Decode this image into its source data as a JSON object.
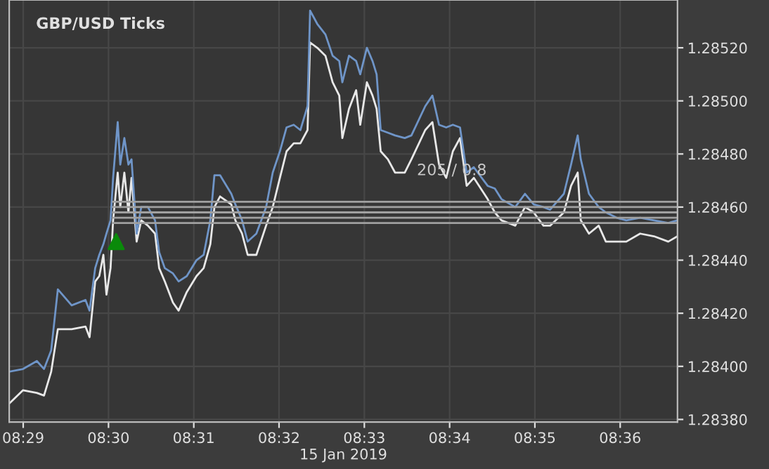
{
  "chart_data": {
    "type": "line",
    "title": "GBP/USD Ticks",
    "xlabel": "15 Jan 2019",
    "annotations": [
      "205 / 0.8"
    ],
    "x": [
      8.4806,
      8.4833,
      8.486,
      8.4874,
      8.4888,
      8.4901,
      8.4928,
      8.4955,
      8.4963,
      8.4974,
      8.4982,
      8.499,
      8.4996,
      8.5004,
      8.5009,
      8.5018,
      8.5023,
      8.5031,
      8.5039,
      8.5045,
      8.5055,
      8.5064,
      8.5077,
      8.5091,
      8.5099,
      8.511,
      8.5126,
      8.5137,
      8.5153,
      8.5172,
      8.5186,
      8.5199,
      8.5207,
      8.5218,
      8.524,
      8.5248,
      8.5261,
      8.5272,
      8.5289,
      8.5308,
      8.5321,
      8.5335,
      8.5348,
      8.5362,
      8.5375,
      8.5389,
      8.5394,
      8.5408,
      8.5424,
      8.5438,
      8.5451,
      8.5457,
      8.547,
      8.5484,
      8.5492,
      8.5505,
      8.5516,
      8.5524,
      8.5532,
      8.5546,
      8.556,
      8.5579,
      8.5592,
      8.5619,
      8.5633,
      8.5646,
      8.566,
      8.5673,
      8.5687,
      8.57,
      8.5714,
      8.5741,
      8.5755,
      8.5768,
      8.5795,
      8.5814,
      8.5831,
      8.585,
      8.5863,
      8.589,
      8.5904,
      8.5917,
      8.5923,
      8.5939,
      8.5958,
      8.5972,
      8.5993,
      8.6012,
      8.6039,
      8.6066,
      8.6094,
      8.6112
    ],
    "series": [
      {
        "color": "#e8e8e8",
        "values": [
          1.28386,
          1.28391,
          1.2839,
          1.28389,
          1.28398,
          1.28414,
          1.28414,
          1.28415,
          1.28411,
          1.28432,
          1.28434,
          1.28442,
          1.28427,
          1.28437,
          1.28455,
          1.28473,
          1.2846,
          1.28473,
          1.28458,
          1.28471,
          1.28447,
          1.28455,
          1.28453,
          1.2845,
          1.28437,
          1.28432,
          1.28424,
          1.28421,
          1.28428,
          1.28434,
          1.28437,
          1.28446,
          1.2846,
          1.28464,
          1.28461,
          1.28455,
          1.2845,
          1.28442,
          1.28442,
          1.28453,
          1.2846,
          1.28471,
          1.28481,
          1.28484,
          1.28484,
          1.28489,
          1.28522,
          1.2852,
          1.28517,
          1.28507,
          1.28502,
          1.28486,
          1.28497,
          1.28504,
          1.28491,
          1.28507,
          1.28502,
          1.28497,
          1.28481,
          1.28478,
          1.28473,
          1.28473,
          1.28478,
          1.28489,
          1.28492,
          1.28476,
          1.28471,
          1.28481,
          1.28486,
          1.28468,
          1.28471,
          1.28463,
          1.28458,
          1.28455,
          1.28453,
          1.2846,
          1.28458,
          1.28453,
          1.28453,
          1.28458,
          1.28468,
          1.28473,
          1.28455,
          1.2845,
          1.28453,
          1.28447,
          1.28447,
          1.28447,
          1.2845,
          1.28449,
          1.28447,
          1.28449
        ]
      },
      {
        "color": "#6f95c8",
        "values": [
          1.28398,
          1.28399,
          1.28402,
          1.28399,
          1.28406,
          1.28429,
          1.28423,
          1.28425,
          1.28421,
          1.28437,
          1.28442,
          1.28446,
          1.2845,
          1.28455,
          1.28471,
          1.28492,
          1.28476,
          1.28486,
          1.28476,
          1.28478,
          1.2845,
          1.2846,
          1.2846,
          1.28455,
          1.28443,
          1.28437,
          1.28435,
          1.28432,
          1.28434,
          1.2844,
          1.28442,
          1.28455,
          1.28472,
          1.28472,
          1.28465,
          1.28461,
          1.28455,
          1.28447,
          1.2845,
          1.2846,
          1.28473,
          1.28481,
          1.2849,
          1.28491,
          1.28489,
          1.28498,
          1.28534,
          1.28529,
          1.28525,
          1.28517,
          1.28515,
          1.28507,
          1.28517,
          1.28515,
          1.2851,
          1.2852,
          1.28515,
          1.2851,
          1.28489,
          1.28488,
          1.28487,
          1.28486,
          1.28487,
          1.28498,
          1.28502,
          1.28491,
          1.2849,
          1.28491,
          1.2849,
          1.28473,
          1.28475,
          1.28468,
          1.28467,
          1.28463,
          1.2846,
          1.28465,
          1.28461,
          1.2846,
          1.28459,
          1.28465,
          1.28476,
          1.28487,
          1.28478,
          1.28465,
          1.2846,
          1.28458,
          1.28456,
          1.28455,
          1.28456,
          1.28455,
          1.28454,
          1.28455
        ]
      },
      {
        "color": "#a0a0a0",
        "x": [
          8.5009,
          8.6112
        ],
        "values": [
          1.28462,
          1.28462
        ]
      },
      {
        "color": "#a0a0a0",
        "x": [
          8.5009,
          8.6112
        ],
        "values": [
          1.2846,
          1.2846
        ]
      },
      {
        "color": "#a0a0a0",
        "x": [
          8.5009,
          8.6112
        ],
        "values": [
          1.28458,
          1.28458
        ]
      },
      {
        "color": "#a0a0a0",
        "x": [
          8.5009,
          8.6112
        ],
        "values": [
          1.28456,
          1.28456
        ]
      },
      {
        "color": "#a0a0a0",
        "x": [
          8.5009,
          8.6112
        ],
        "values": [
          1.28454,
          1.28454
        ]
      },
      {
        "type": "scatter",
        "marker": "triangle",
        "color": "#0a8a0a",
        "x": [
          8.5015
        ],
        "values": [
          1.28447
        ]
      }
    ],
    "xlim": [
      8.4806,
      8.6112
    ],
    "xticks": [
      {
        "value": 8.48333,
        "label": "08:29"
      },
      {
        "value": 8.5,
        "label": "08:30"
      },
      {
        "value": 8.51667,
        "label": "08:31"
      },
      {
        "value": 8.53333,
        "label": "08:32"
      },
      {
        "value": 8.55,
        "label": "08:33"
      },
      {
        "value": 8.56667,
        "label": "08:34"
      },
      {
        "value": 8.58333,
        "label": "08:35"
      },
      {
        "value": 8.6,
        "label": "08:36"
      }
    ],
    "ylim": [
      1.28379,
      1.28538
    ],
    "yticks": [
      {
        "value": 1.2838,
        "label": "1.28380"
      },
      {
        "value": 1.284,
        "label": "1.28400"
      },
      {
        "value": 1.2842,
        "label": "1.28420"
      },
      {
        "value": 1.2844,
        "label": "1.28440"
      },
      {
        "value": 1.2846,
        "label": "1.28460"
      },
      {
        "value": 1.2848,
        "label": "1.28480"
      },
      {
        "value": 1.285,
        "label": "1.28500"
      },
      {
        "value": 1.2852,
        "label": "1.28520"
      }
    ],
    "grid": true,
    "legend": false
  }
}
